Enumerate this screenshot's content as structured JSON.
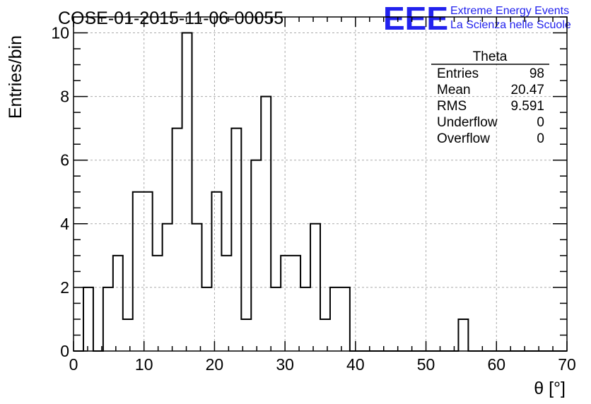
{
  "colors": {
    "logo": "#2222ee",
    "histogram_line": "#000000",
    "grid": "#aaaaaa"
  },
  "logo": {
    "mark": "EEE",
    "line1": "Extreme Energy Events",
    "line2": "La Scienza nelle Scuole"
  },
  "chart_data": {
    "type": "histogram",
    "title": "COSE-01-2015-11-06-00055",
    "xlabel": "θ [°]",
    "ylabel": "Entries/bin",
    "xlim": [
      0,
      70
    ],
    "ylim": [
      0,
      10.5
    ],
    "xticks": [
      0,
      10,
      20,
      30,
      40,
      50,
      60,
      70
    ],
    "yticks": [
      0,
      2,
      4,
      6,
      8,
      10
    ],
    "grid": true,
    "bin_width": 1.4,
    "bin_edges_start": 0,
    "counts": [
      0,
      2,
      0,
      2,
      3,
      1,
      5,
      5,
      3,
      4,
      7,
      10,
      4,
      2,
      5,
      3,
      7,
      1,
      6,
      8,
      2,
      3,
      3,
      2,
      4,
      1,
      2,
      2,
      0,
      0,
      0,
      0,
      0,
      0,
      0,
      0,
      0,
      0,
      0,
      1,
      0,
      0,
      0,
      0,
      0,
      0,
      0,
      0,
      0,
      0
    ],
    "stats_box": {
      "title": "Theta",
      "placement": "top-right",
      "rows": [
        {
          "label": "Entries",
          "value": "98"
        },
        {
          "label": "Mean",
          "value": "20.47"
        },
        {
          "label": "RMS",
          "value": "9.591"
        },
        {
          "label": "Underflow",
          "value": "0"
        },
        {
          "label": "Overflow",
          "value": "0"
        }
      ]
    }
  }
}
